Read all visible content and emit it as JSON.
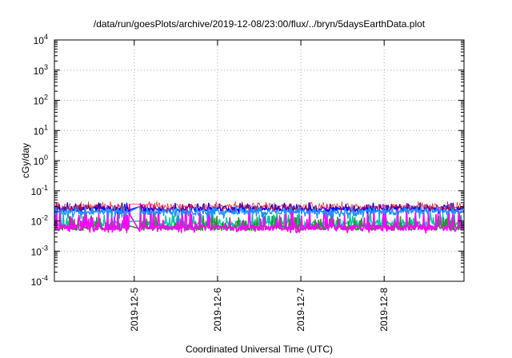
{
  "chart_data": {
    "type": "line",
    "title": "/data/run/goesPlots/archive/2019-12-08/23:00/flux/../bryn/5daysEarthData.plot",
    "xlabel": "Coordinated Universal Time (UTC)",
    "ylabel": "cGy/day",
    "yscale": "log",
    "ylim": [
      0.0001,
      10000
    ],
    "y_ticks": [
      {
        "value": 0.0001,
        "base": "10",
        "exp": "-4"
      },
      {
        "value": 0.001,
        "base": "10",
        "exp": "-3"
      },
      {
        "value": 0.01,
        "base": "10",
        "exp": "-2"
      },
      {
        "value": 0.1,
        "base": "10",
        "exp": "-1"
      },
      {
        "value": 1,
        "base": "10",
        "exp": "0"
      },
      {
        "value": 10,
        "base": "10",
        "exp": "1"
      },
      {
        "value": 100,
        "base": "10",
        "exp": "2"
      },
      {
        "value": 1000,
        "base": "10",
        "exp": "3"
      },
      {
        "value": 10000,
        "base": "10",
        "exp": "4"
      }
    ],
    "xlim": [
      "2019-12-04T01:00",
      "2019-12-08T23:00"
    ],
    "x_ticks": [
      "2019-12-5",
      "2019-12-6",
      "2019-12-7",
      "2019-12-8"
    ],
    "grid": true,
    "gap": {
      "start": "2019-12-04T23:00",
      "end": "2019-12-05T01:30"
    },
    "series": [
      {
        "color": "#ff0000",
        "level": 0.03,
        "high": 0.045,
        "low": 0.02
      },
      {
        "color": "#0000ff",
        "level": 0.025,
        "high": 0.04,
        "low": 0.018
      },
      {
        "color": "#1e90ff",
        "level": 0.02,
        "high": 0.035,
        "low": 0.012
      },
      {
        "color": "#00c8a0",
        "level": 0.008,
        "high": 0.02,
        "low": 0.006
      },
      {
        "color": "#2f8f2f",
        "level": 0.006,
        "high": 0.015,
        "low": 0.005
      },
      {
        "color": "#ff00ff",
        "level": 0.006,
        "high": 0.04,
        "low": 0.004
      }
    ]
  }
}
